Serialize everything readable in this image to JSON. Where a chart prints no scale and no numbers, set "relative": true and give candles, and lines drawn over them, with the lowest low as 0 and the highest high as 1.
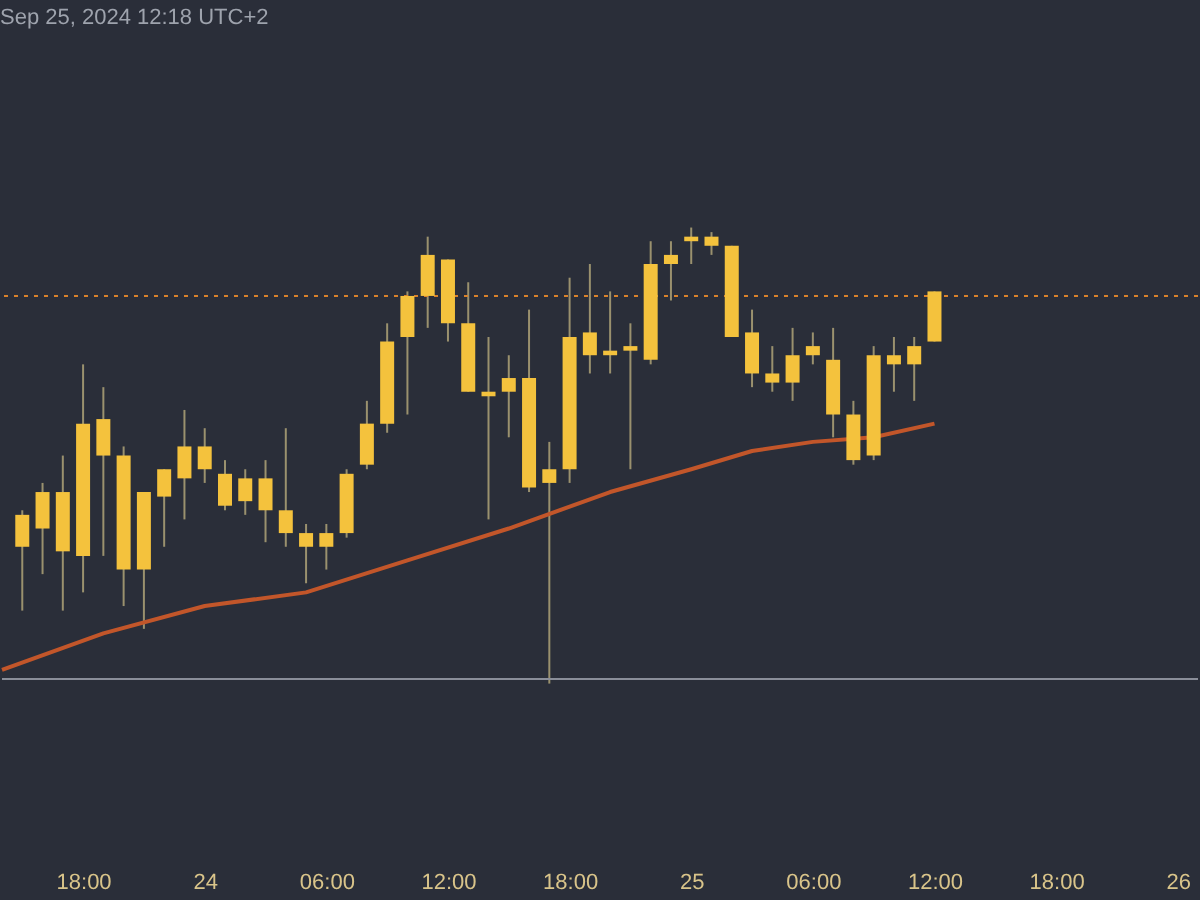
{
  "chart_data": {
    "type": "candlestick",
    "relative": true,
    "annotations": [
      "Sep 25, 2024 12:18 UTC+2"
    ],
    "xlim": [
      "2024-09-23T14:00",
      "2024-09-26T01:00"
    ],
    "xticks": [
      {
        "value": "2024-09-23T18:00",
        "label": "18:00"
      },
      {
        "value": "2024-09-24T00:00",
        "label": "24"
      },
      {
        "value": "2024-09-24T06:00",
        "label": "06:00"
      },
      {
        "value": "2024-09-24T12:00",
        "label": "12:00"
      },
      {
        "value": "2024-09-24T18:00",
        "label": "18:00"
      },
      {
        "value": "2024-09-25T00:00",
        "label": "25"
      },
      {
        "value": "2024-09-25T06:00",
        "label": "06:00"
      },
      {
        "value": "2024-09-25T12:00",
        "label": "12:00"
      },
      {
        "value": "2024-09-25T18:00",
        "label": "18:00"
      },
      {
        "value": "2024-09-26T00:00",
        "label": "26"
      }
    ],
    "grid": false,
    "series": [
      {
        "color": "#f4c23d",
        "x": [
          "2024-09-23T15:00",
          "2024-09-23T16:00",
          "2024-09-23T17:00",
          "2024-09-23T18:00",
          "2024-09-23T19:00",
          "2024-09-23T20:00",
          "2024-09-23T21:00",
          "2024-09-23T22:00",
          "2024-09-23T23:00",
          "2024-09-24T00:00",
          "2024-09-24T01:00",
          "2024-09-24T02:00",
          "2024-09-24T03:00",
          "2024-09-24T04:00",
          "2024-09-24T05:00",
          "2024-09-24T06:00",
          "2024-09-24T07:00",
          "2024-09-24T08:00",
          "2024-09-24T09:00",
          "2024-09-24T10:00",
          "2024-09-24T11:00",
          "2024-09-24T12:00",
          "2024-09-24T13:00",
          "2024-09-24T14:00",
          "2024-09-24T15:00",
          "2024-09-24T16:00",
          "2024-09-24T17:00",
          "2024-09-24T18:00",
          "2024-09-24T19:00",
          "2024-09-24T20:00",
          "2024-09-24T21:00",
          "2024-09-24T22:00",
          "2024-09-24T23:00",
          "2024-09-25T00:00",
          "2024-09-25T01:00",
          "2024-09-25T02:00",
          "2024-09-25T03:00",
          "2024-09-25T04:00",
          "2024-09-25T05:00",
          "2024-09-25T06:00",
          "2024-09-25T07:00",
          "2024-09-25T08:00",
          "2024-09-25T09:00",
          "2024-09-25T10:00",
          "2024-09-25T11:00",
          "2024-09-25T12:00"
        ],
        "ohlc": [
          [
            0.3,
            0.38,
            0.16,
            0.37
          ],
          [
            0.34,
            0.44,
            0.24,
            0.42
          ],
          [
            0.29,
            0.5,
            0.16,
            0.42
          ],
          [
            0.28,
            0.7,
            0.2,
            0.57
          ],
          [
            0.5,
            0.65,
            0.28,
            0.58
          ],
          [
            0.25,
            0.52,
            0.17,
            0.5
          ],
          [
            0.25,
            0.42,
            0.12,
            0.42
          ],
          [
            0.41,
            0.47,
            0.3,
            0.47
          ],
          [
            0.45,
            0.6,
            0.36,
            0.52
          ],
          [
            0.47,
            0.56,
            0.44,
            0.52
          ],
          [
            0.39,
            0.49,
            0.38,
            0.46
          ],
          [
            0.4,
            0.47,
            0.37,
            0.45
          ],
          [
            0.38,
            0.49,
            0.31,
            0.45
          ],
          [
            0.33,
            0.56,
            0.3,
            0.38
          ],
          [
            0.3,
            0.35,
            0.22,
            0.33
          ],
          [
            0.3,
            0.35,
            0.25,
            0.33
          ],
          [
            0.33,
            0.47,
            0.32,
            0.46
          ],
          [
            0.48,
            0.62,
            0.47,
            0.57
          ],
          [
            0.57,
            0.79,
            0.55,
            0.75
          ],
          [
            0.76,
            0.86,
            0.59,
            0.85
          ],
          [
            0.85,
            0.98,
            0.78,
            0.94
          ],
          [
            0.79,
            0.93,
            0.75,
            0.93
          ],
          [
            0.64,
            0.88,
            0.64,
            0.79
          ],
          [
            0.63,
            0.76,
            0.36,
            0.64
          ],
          [
            0.64,
            0.72,
            0.54,
            0.67
          ],
          [
            0.43,
            0.82,
            0.42,
            0.67
          ],
          [
            0.44,
            0.53,
            0,
            0.47
          ],
          [
            0.47,
            0.89,
            0.44,
            0.76
          ],
          [
            0.72,
            0.92,
            0.68,
            0.77
          ],
          [
            0.72,
            0.86,
            0.68,
            0.73
          ],
          [
            0.73,
            0.79,
            0.47,
            0.74
          ],
          [
            0.71,
            0.97,
            0.7,
            0.92
          ],
          [
            0.92,
            0.97,
            0.84,
            0.94
          ],
          [
            0.97,
            1,
            0.92,
            0.98
          ],
          [
            0.96,
            0.99,
            0.94,
            0.98
          ],
          [
            0.76,
            0.96,
            0.76,
            0.96
          ],
          [
            0.68,
            0.82,
            0.65,
            0.77
          ],
          [
            0.66,
            0.74,
            0.64,
            0.68
          ],
          [
            0.66,
            0.78,
            0.62,
            0.72
          ],
          [
            0.72,
            0.77,
            0.7,
            0.74
          ],
          [
            0.59,
            0.78,
            0.54,
            0.71
          ],
          [
            0.49,
            0.62,
            0.48,
            0.59
          ],
          [
            0.5,
            0.74,
            0.49,
            0.72
          ],
          [
            0.7,
            0.76,
            0.64,
            0.72
          ],
          [
            0.7,
            0.76,
            0.62,
            0.74
          ],
          [
            0.75,
            0.86,
            0.75,
            0.86
          ]
        ]
      },
      {
        "type": "line",
        "color": "#c2562a",
        "x": [
          "2024-09-23T14:00",
          "2024-09-23T19:00",
          "2024-09-24T00:00",
          "2024-09-24T05:00",
          "2024-09-24T10:00",
          "2024-09-24T15:00",
          "2024-09-24T20:00",
          "2024-09-25T00:00",
          "2024-09-25T03:00",
          "2024-09-25T06:00",
          "2024-09-25T09:00",
          "2024-09-25T12:00"
        ],
        "values": [
          0.03,
          0.11,
          0.17,
          0.2,
          0.27,
          0.34,
          0.42,
          0.47,
          0.51,
          0.53,
          0.54,
          0.57
        ]
      }
    ],
    "ref_lines": [
      {
        "axis": "y",
        "value": 0.85,
        "color": "#d9822b",
        "line_style": "dotted"
      },
      {
        "axis": "y",
        "value": 0.01,
        "color": "#8a8e99",
        "line_style": "solid"
      }
    ]
  }
}
